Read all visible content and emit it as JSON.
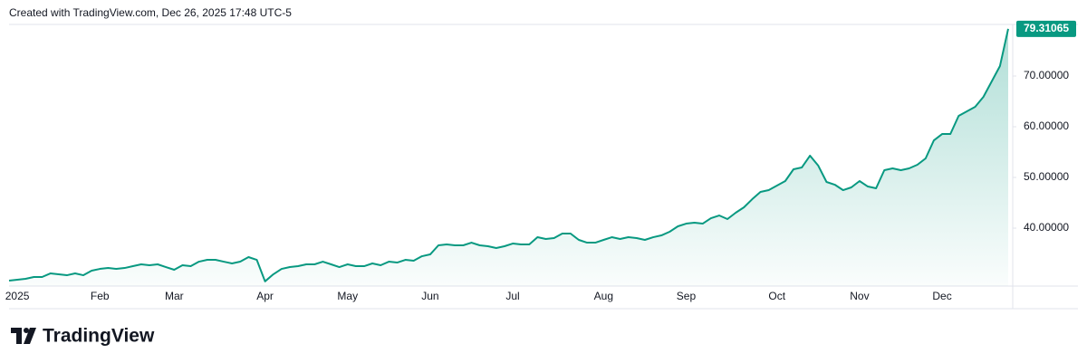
{
  "attribution": "Created with TradingView.com, Dec 26, 2025 17:48 UTC-5",
  "logo": "TradingView",
  "chart_data": {
    "type": "area",
    "color": "#089981",
    "ylim": [
      29.29,
      80
    ],
    "yticks": [
      {
        "value": 40,
        "label": "40.00000"
      },
      {
        "value": 50,
        "label": "50.00000"
      },
      {
        "value": 60,
        "label": "60.00000"
      },
      {
        "value": 70,
        "label": "70.00000"
      }
    ],
    "grid": false,
    "categories": [
      null,
      "2025",
      null,
      null,
      null,
      null,
      null,
      null,
      null,
      null,
      null,
      "Feb",
      null,
      null,
      null,
      null,
      null,
      null,
      null,
      null,
      "Mar",
      null,
      null,
      null,
      null,
      null,
      null,
      null,
      null,
      null,
      null,
      "Apr",
      null,
      null,
      null,
      null,
      null,
      null,
      null,
      null,
      null,
      "May",
      null,
      null,
      null,
      null,
      null,
      null,
      null,
      null,
      null,
      "Jun",
      null,
      null,
      null,
      null,
      null,
      null,
      null,
      null,
      null,
      "Jul",
      null,
      null,
      null,
      null,
      null,
      null,
      null,
      null,
      null,
      null,
      "Aug",
      null,
      null,
      null,
      null,
      null,
      null,
      null,
      null,
      null,
      "Sep",
      null,
      null,
      null,
      null,
      null,
      null,
      null,
      null,
      null,
      null,
      "Oct",
      null,
      null,
      null,
      null,
      null,
      null,
      null,
      null,
      null,
      "Nov",
      null,
      null,
      null,
      null,
      null,
      null,
      null,
      null,
      null,
      "Dec",
      null,
      null,
      null,
      null,
      null,
      null,
      null,
      null
    ],
    "values": [
      29.64,
      29.82,
      30.0,
      30.36,
      30.36,
      31.07,
      30.89,
      30.71,
      31.07,
      30.71,
      31.61,
      31.96,
      32.14,
      31.96,
      32.14,
      32.5,
      32.86,
      32.68,
      32.86,
      32.32,
      31.79,
      32.68,
      32.5,
      33.39,
      33.75,
      33.75,
      33.39,
      33.04,
      33.39,
      34.29,
      33.75,
      29.5,
      30.89,
      31.96,
      32.32,
      32.5,
      32.86,
      32.86,
      33.39,
      32.86,
      32.32,
      32.86,
      32.5,
      32.5,
      33.04,
      32.68,
      33.39,
      33.21,
      33.75,
      33.57,
      34.46,
      34.82,
      36.61,
      36.79,
      36.61,
      36.61,
      37.14,
      36.61,
      36.43,
      36.07,
      36.43,
      36.96,
      36.79,
      36.79,
      38.21,
      37.86,
      38.04,
      38.93,
      38.93,
      37.68,
      37.14,
      37.14,
      37.68,
      38.21,
      37.86,
      38.21,
      38.04,
      37.68,
      38.21,
      38.57,
      39.29,
      40.36,
      40.89,
      41.07,
      40.89,
      41.96,
      42.5,
      41.79,
      43.04,
      44.11,
      45.71,
      47.14,
      47.5,
      48.39,
      49.29,
      51.61,
      51.96,
      54.29,
      52.32,
      49.11,
      48.57,
      47.5,
      48.04,
      49.29,
      48.21,
      47.86,
      51.43,
      51.79,
      51.43,
      51.79,
      52.5,
      53.75,
      57.32,
      58.57,
      58.57,
      62.14,
      63.04,
      63.93,
      65.89,
      68.93,
      71.96,
      79.31065
    ]
  }
}
